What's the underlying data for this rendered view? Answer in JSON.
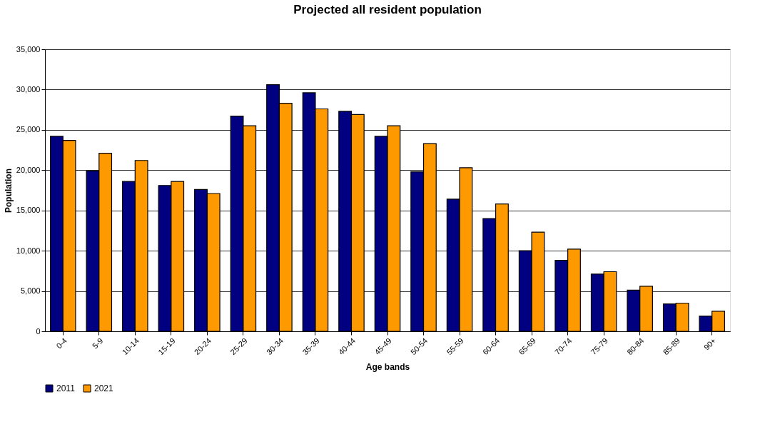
{
  "chart_data": {
    "type": "bar",
    "title": "Projected all resident population",
    "xlabel": "Age bands",
    "ylabel": "Population",
    "categories": [
      "0-4",
      "5-9",
      "10-14",
      "15-19",
      "20-24",
      "25-29",
      "30-34",
      "35-39",
      "40-44",
      "45-49",
      "50-54",
      "55-59",
      "60-64",
      "65-69",
      "70-74",
      "75-79",
      "80-84",
      "85-89",
      "90+"
    ],
    "series": [
      {
        "name": "2011",
        "color": "#000080",
        "values": [
          24200,
          19900,
          18600,
          18100,
          17600,
          26700,
          30600,
          29600,
          27300,
          24200,
          19800,
          16400,
          14000,
          10000,
          8800,
          7100,
          5100,
          3400,
          1900
        ]
      },
      {
        "name": "2021",
        "color": "#ff9900",
        "values": [
          23700,
          22100,
          21200,
          18600,
          17100,
          25500,
          28300,
          27600,
          26900,
          25500,
          23300,
          20300,
          15800,
          12300,
          10200,
          7400,
          5600,
          3500,
          2500
        ]
      }
    ],
    "ylim": [
      0,
      35000
    ],
    "yticks": [
      {
        "value": 0,
        "label": "0"
      },
      {
        "value": 5000,
        "label": "5,000"
      },
      {
        "value": 10000,
        "label": "10,000"
      },
      {
        "value": 15000,
        "label": "15,000"
      },
      {
        "value": 20000,
        "label": "20,000"
      },
      {
        "value": 25000,
        "label": "25,000"
      },
      {
        "value": 30000,
        "label": "30,000"
      },
      {
        "value": 35000,
        "label": "35,000"
      }
    ],
    "grid": "y",
    "legend": "bottom"
  }
}
